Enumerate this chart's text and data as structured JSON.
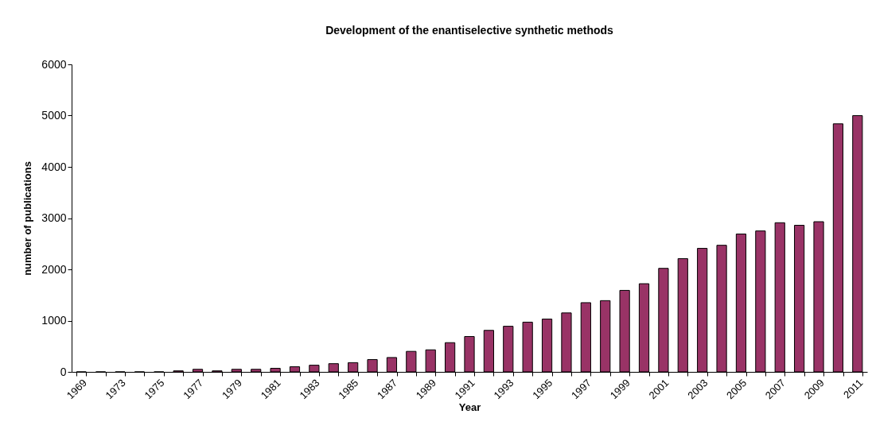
{
  "chart_data": {
    "type": "bar",
    "title": "Development of the enantiselective synthetic methods",
    "xlabel": "Year",
    "ylabel": "number of publications",
    "categories": [
      "1969",
      null,
      "1973",
      null,
      "1975",
      null,
      "1977",
      null,
      "1979",
      null,
      "1981",
      null,
      "1983",
      null,
      "1985",
      null,
      "1987",
      null,
      "1989",
      null,
      "1991",
      null,
      "1993",
      null,
      "1995",
      null,
      "1997",
      null,
      "1999",
      null,
      "2001",
      null,
      "2003",
      null,
      "2005",
      null,
      "2007",
      null,
      "2009",
      null,
      "2011"
    ],
    "values": [
      0,
      0,
      0,
      0,
      0,
      20,
      50,
      20,
      50,
      50,
      70,
      100,
      130,
      160,
      180,
      240,
      280,
      400,
      430,
      570,
      690,
      810,
      890,
      970,
      1030,
      1150,
      1350,
      1390,
      1590,
      1720,
      2020,
      2210,
      2410,
      2470,
      2690,
      2750,
      2910,
      2860,
      2930,
      4840,
      5000
    ],
    "color": "#993366",
    "ylim": [
      0,
      6000
    ],
    "yticks": [
      0,
      1000,
      2000,
      3000,
      4000,
      5000,
      6000
    ],
    "grid": false
  }
}
